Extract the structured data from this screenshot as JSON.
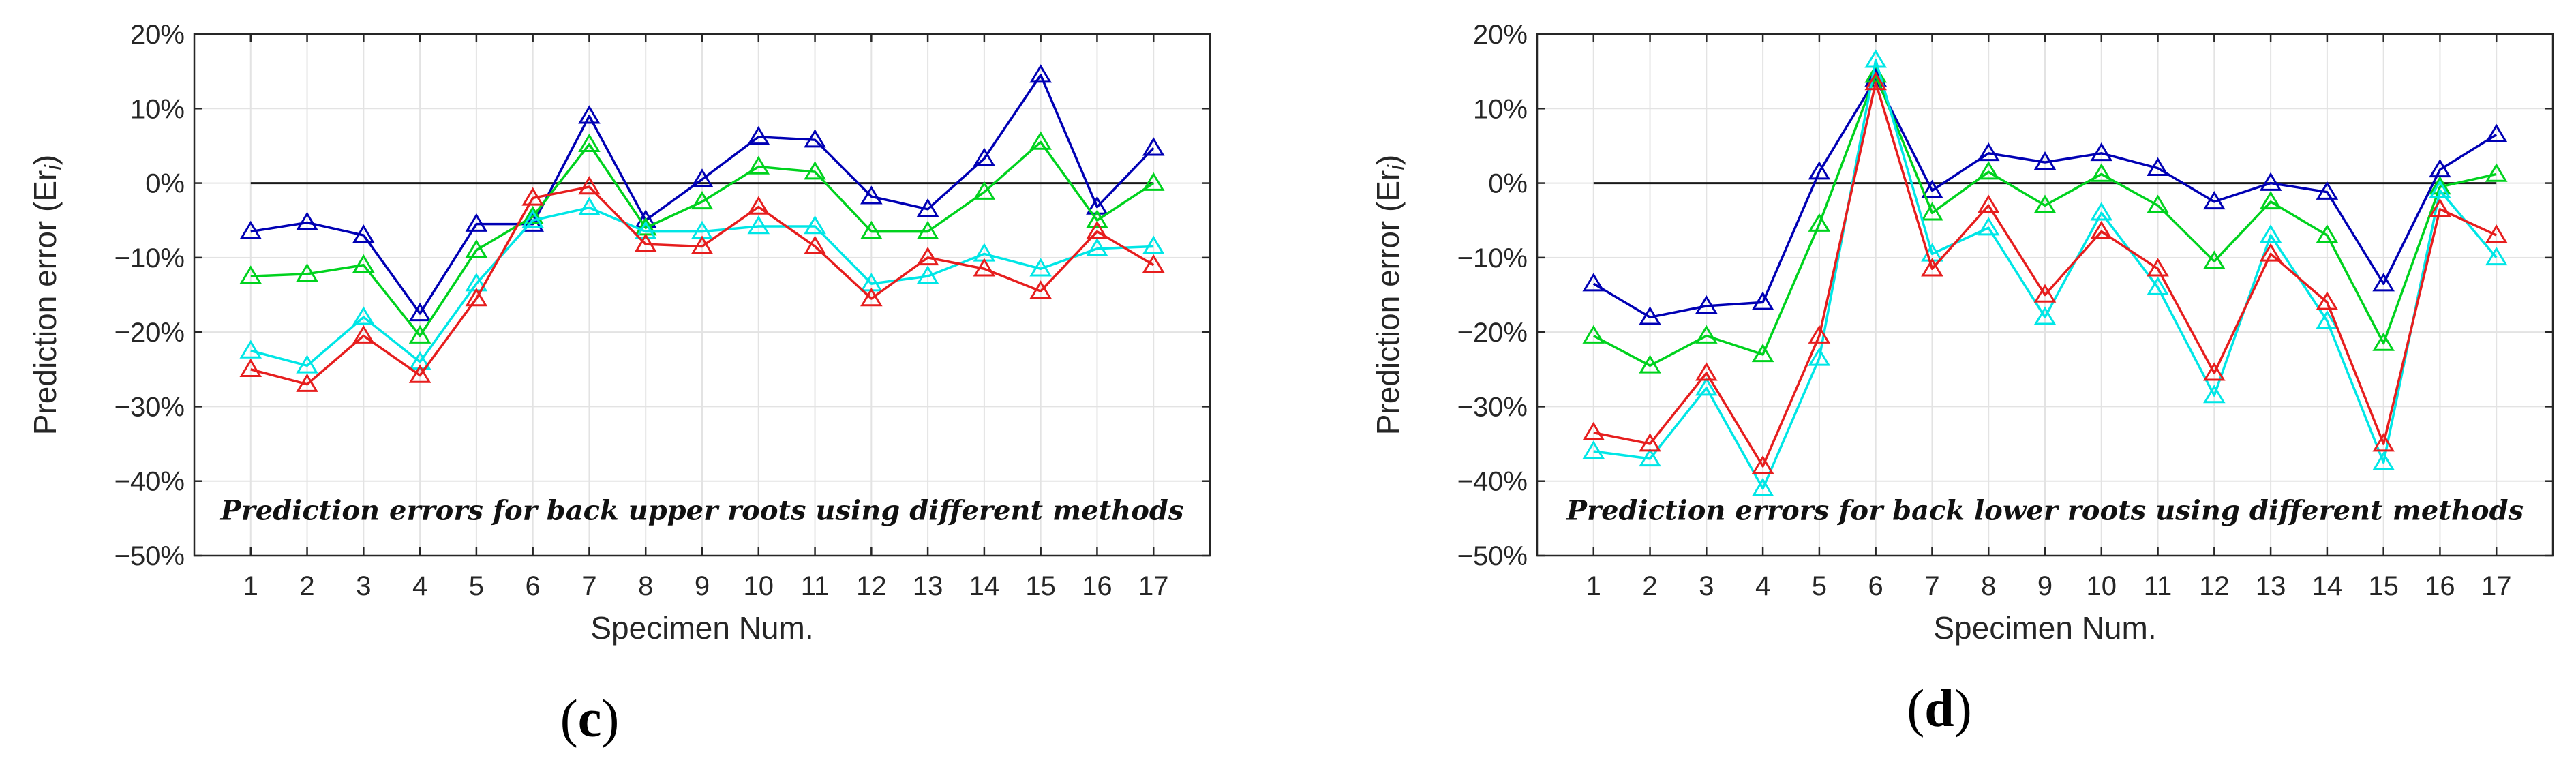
{
  "chart_data": [
    {
      "type": "line",
      "panel": "c",
      "title": "",
      "annotation": "Prediction errors for back upper roots using different methods",
      "xlabel": "Specimen Num.",
      "ylabel": "Prediction error (Er",
      "ylabel_subscript": "i",
      "ylabel_close": ")",
      "categories": [
        "1",
        "2",
        "3",
        "4",
        "5",
        "6",
        "7",
        "8",
        "9",
        "10",
        "11",
        "12",
        "13",
        "14",
        "15",
        "16",
        "17"
      ],
      "ylim": [
        -50,
        20
      ],
      "yticks": [
        20,
        10,
        0,
        -10,
        -20,
        -30,
        -40,
        -50
      ],
      "ytick_labels": [
        "20%",
        "10%",
        "0%",
        "−10%",
        "−20%",
        "−30%",
        "−40%",
        "−50%"
      ],
      "grid": true,
      "reference_line": 0,
      "marker": "triangle",
      "series": [
        {
          "name": "blue",
          "color": "#0000b4",
          "values": [
            -6.5,
            -5.3,
            -7,
            -17.5,
            -5.5,
            -5.5,
            9,
            -5,
            0.5,
            6.2,
            5.8,
            -1.8,
            -3.5,
            3.3,
            14.5,
            -3.2,
            4.7
          ]
        },
        {
          "name": "green",
          "color": "#00d21e",
          "values": [
            -12.5,
            -12.2,
            -11,
            -20.5,
            -9,
            -4.5,
            5.2,
            -6,
            -2.5,
            2.2,
            1.5,
            -6.5,
            -6.5,
            -1.2,
            5.5,
            -5,
            0
          ]
        },
        {
          "name": "cyan",
          "color": "#00e6e6",
          "values": [
            -22.5,
            -24.5,
            -18,
            -24,
            -13.5,
            -5,
            -3.3,
            -6.5,
            -6.5,
            -5.8,
            -5.8,
            -13.5,
            -12.5,
            -9.5,
            -11.5,
            -8.8,
            -8.5
          ]
        },
        {
          "name": "red",
          "color": "#e61e1e",
          "values": [
            -25,
            -27,
            -20.5,
            -25.8,
            -15.5,
            -2,
            -0.5,
            -8.2,
            -8.5,
            -3.2,
            -8.5,
            -15.5,
            -10,
            -11.5,
            -14.5,
            -6.5,
            -11
          ]
        }
      ]
    },
    {
      "type": "line",
      "panel": "d",
      "title": "",
      "annotation": "Prediction errors for back lower roots using different methods",
      "xlabel": "Specimen Num.",
      "ylabel": "Prediction error (Er",
      "ylabel_subscript": "i",
      "ylabel_close": ")",
      "categories": [
        "1",
        "2",
        "3",
        "4",
        "5",
        "6",
        "7",
        "8",
        "9",
        "10",
        "11",
        "12",
        "13",
        "14",
        "15",
        "16",
        "17"
      ],
      "ylim": [
        -50,
        20
      ],
      "yticks": [
        20,
        10,
        0,
        -10,
        -20,
        -30,
        -40,
        -50
      ],
      "ytick_labels": [
        "20%",
        "10%",
        "0%",
        "−10%",
        "−20%",
        "−30%",
        "−40%",
        "−50%"
      ],
      "grid": true,
      "reference_line": 0,
      "marker": "triangle",
      "series": [
        {
          "name": "blue",
          "color": "#0000b4",
          "values": [
            -13.5,
            -18,
            -16.5,
            -16,
            1.5,
            14,
            -1,
            4,
            2.8,
            4,
            2,
            -2.5,
            0,
            -1.2,
            -13.5,
            1.8,
            6.5
          ]
        },
        {
          "name": "green",
          "color": "#00d21e",
          "values": [
            -20.5,
            -24.5,
            -20.5,
            -23,
            -5.5,
            14.5,
            -4,
            1.5,
            -3,
            1.2,
            -3,
            -10.5,
            -2.5,
            -7,
            -21.5,
            -0.5,
            1.2
          ]
        },
        {
          "name": "cyan",
          "color": "#00e6e6",
          "values": [
            -36,
            -37,
            -27.5,
            -41,
            -23.5,
            16.5,
            -9.5,
            -6,
            -18,
            -4,
            -14,
            -28.5,
            -7,
            -18.5,
            -37.5,
            -1,
            -10
          ]
        },
        {
          "name": "red",
          "color": "#e61e1e",
          "values": [
            -33.5,
            -35,
            -25.5,
            -38,
            -20.5,
            13.5,
            -11.5,
            -3,
            -15,
            -6.5,
            -11.5,
            -25.5,
            -9.5,
            -16,
            -35,
            -3.5,
            -7
          ]
        }
      ]
    }
  ],
  "panel_labels": {
    "c_open": "(",
    "c_letter": "c",
    "c_close": ")",
    "d_open": "(",
    "d_letter": "d",
    "d_close": ")"
  }
}
